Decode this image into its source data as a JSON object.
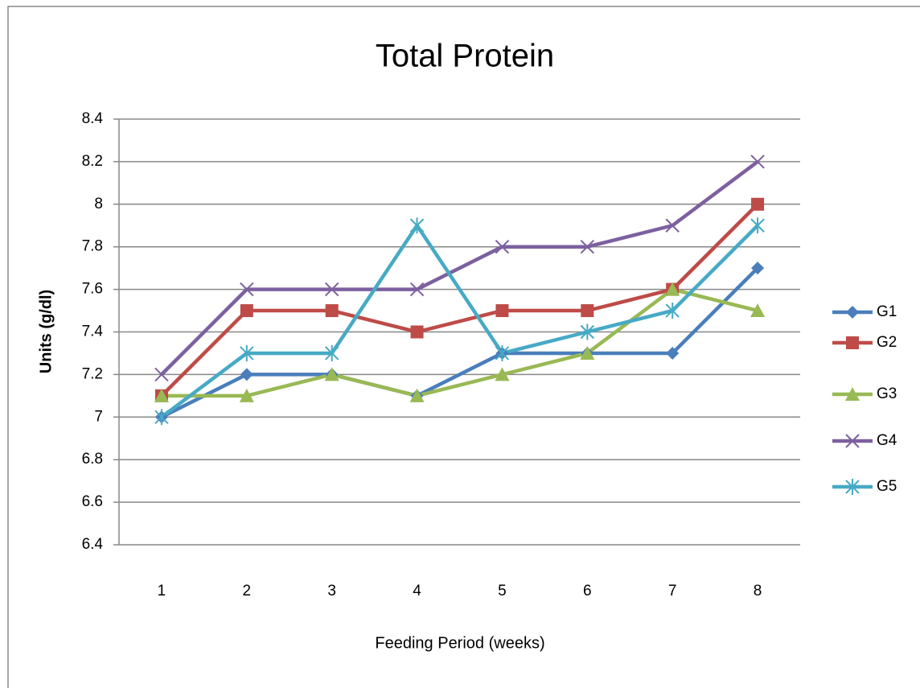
{
  "chart_data": {
    "type": "line",
    "title": "Total Protein",
    "x_label": "Feeding Period  (weeks)",
    "y_label": "Units (g/dl)",
    "categories": [
      "1",
      "2",
      "3",
      "4",
      "5",
      "6",
      "7",
      "8"
    ],
    "ylim": [
      6.4,
      8.4
    ],
    "yticks": [
      6.4,
      6.6,
      6.8,
      7,
      7.2,
      7.4,
      7.6,
      7.8,
      8,
      8.2,
      8.4
    ],
    "grid": true,
    "legend": "right",
    "series": [
      {
        "name": "G1",
        "color": "#4a7ebb",
        "marker": "diamond",
        "values": [
          7.0,
          7.2,
          7.2,
          7.1,
          7.3,
          7.3,
          7.3,
          7.7
        ]
      },
      {
        "name": "G2",
        "color": "#be4b48",
        "marker": "square",
        "values": [
          7.1,
          7.5,
          7.5,
          7.4,
          7.5,
          7.5,
          7.6,
          8.0
        ]
      },
      {
        "name": "G3",
        "color": "#98b954",
        "marker": "triangle",
        "values": [
          7.1,
          7.1,
          7.2,
          7.1,
          7.2,
          7.3,
          7.6,
          7.5
        ]
      },
      {
        "name": "G4",
        "color": "#7d60a0",
        "marker": "x",
        "values": [
          7.2,
          7.6,
          7.6,
          7.6,
          7.8,
          7.8,
          7.9,
          8.2
        ]
      },
      {
        "name": "G5",
        "color": "#46aac5",
        "marker": "star",
        "values": [
          7.0,
          7.3,
          7.3,
          7.9,
          7.3,
          7.4,
          7.5,
          7.9
        ]
      }
    ]
  }
}
